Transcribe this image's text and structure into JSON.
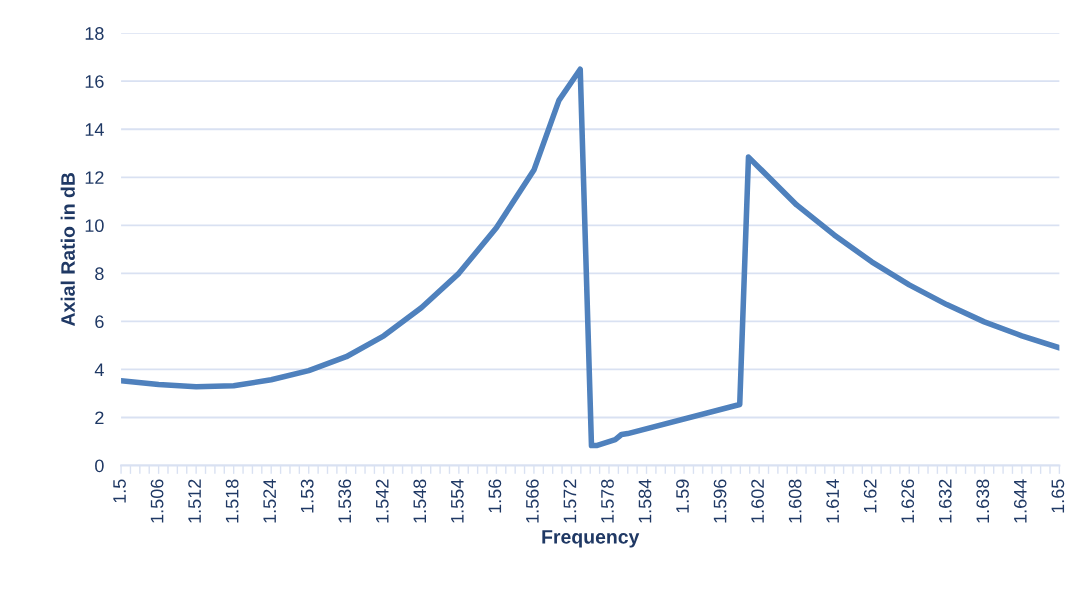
{
  "chart_data": {
    "type": "line",
    "xlabel": "Frequency",
    "ylabel": "Axial Ratio in dB",
    "x": [
      1.5,
      1.506,
      1.512,
      1.518,
      1.524,
      1.53,
      1.536,
      1.542,
      1.548,
      1.554,
      1.56,
      1.566,
      1.57,
      1.5734,
      1.5752,
      1.576,
      1.579,
      1.58,
      1.581,
      1.5989,
      1.6003,
      1.602,
      1.608,
      1.614,
      1.62,
      1.626,
      1.632,
      1.638,
      1.644,
      1.65
    ],
    "series": [
      {
        "color": "#4f81bd",
        "values": [
          3.53,
          3.37,
          3.28,
          3.32,
          3.57,
          3.95,
          4.53,
          5.4,
          6.57,
          8.0,
          9.9,
          12.3,
          15.2,
          16.5,
          0.83,
          0.83,
          1.08,
          1.29,
          1.33,
          2.54,
          12.84,
          12.4,
          10.85,
          9.6,
          8.48,
          7.52,
          6.7,
          5.98,
          5.4,
          4.9
        ]
      }
    ],
    "xlim": [
      1.5,
      1.65
    ],
    "xticks": [
      1.5,
      {
        "value": 1.5015,
        "label": null
      },
      {
        "value": 1.503,
        "label": null
      },
      {
        "value": 1.5045,
        "label": null
      },
      1.506,
      {
        "value": 1.5075,
        "label": null
      },
      {
        "value": 1.509,
        "label": null
      },
      {
        "value": 1.5105,
        "label": null
      },
      1.512,
      {
        "value": 1.5135,
        "label": null
      },
      {
        "value": 1.515,
        "label": null
      },
      {
        "value": 1.5165,
        "label": null
      },
      1.518,
      {
        "value": 1.5195,
        "label": null
      },
      {
        "value": 1.521,
        "label": null
      },
      {
        "value": 1.5225,
        "label": null
      },
      1.524,
      {
        "value": 1.5255,
        "label": null
      },
      {
        "value": 1.527,
        "label": null
      },
      {
        "value": 1.5285,
        "label": null
      },
      1.53,
      {
        "value": 1.5315,
        "label": null
      },
      {
        "value": 1.533,
        "label": null
      },
      {
        "value": 1.5345,
        "label": null
      },
      1.536,
      {
        "value": 1.5375,
        "label": null
      },
      {
        "value": 1.539,
        "label": null
      },
      {
        "value": 1.5405,
        "label": null
      },
      1.542,
      {
        "value": 1.5435,
        "label": null
      },
      {
        "value": 1.545,
        "label": null
      },
      {
        "value": 1.5465,
        "label": null
      },
      1.548,
      {
        "value": 1.5495,
        "label": null
      },
      {
        "value": 1.551,
        "label": null
      },
      {
        "value": 1.5525,
        "label": null
      },
      1.554,
      {
        "value": 1.5555,
        "label": null
      },
      {
        "value": 1.557,
        "label": null
      },
      {
        "value": 1.5585,
        "label": null
      },
      1.56,
      {
        "value": 1.5615,
        "label": null
      },
      {
        "value": 1.563,
        "label": null
      },
      {
        "value": 1.5645,
        "label": null
      },
      1.566,
      {
        "value": 1.5675,
        "label": null
      },
      {
        "value": 1.569,
        "label": null
      },
      {
        "value": 1.5705,
        "label": null
      },
      1.572,
      {
        "value": 1.5735,
        "label": null
      },
      {
        "value": 1.575,
        "label": null
      },
      {
        "value": 1.5765,
        "label": null
      },
      1.578,
      {
        "value": 1.5795,
        "label": null
      },
      {
        "value": 1.581,
        "label": null
      },
      {
        "value": 1.5825,
        "label": null
      },
      1.584,
      {
        "value": 1.5855,
        "label": null
      },
      {
        "value": 1.587,
        "label": null
      },
      {
        "value": 1.5885,
        "label": null
      },
      1.59,
      {
        "value": 1.5915,
        "label": null
      },
      {
        "value": 1.593,
        "label": null
      },
      {
        "value": 1.5945,
        "label": null
      },
      1.596,
      {
        "value": 1.5975,
        "label": null
      },
      {
        "value": 1.599,
        "label": null
      },
      {
        "value": 1.6005,
        "label": null
      },
      1.602,
      {
        "value": 1.6035,
        "label": null
      },
      {
        "value": 1.605,
        "label": null
      },
      {
        "value": 1.6065,
        "label": null
      },
      1.608,
      {
        "value": 1.6095,
        "label": null
      },
      {
        "value": 1.611,
        "label": null
      },
      {
        "value": 1.6125,
        "label": null
      },
      1.614,
      {
        "value": 1.6155,
        "label": null
      },
      {
        "value": 1.617,
        "label": null
      },
      {
        "value": 1.6185,
        "label": null
      },
      1.62,
      {
        "value": 1.6215,
        "label": null
      },
      {
        "value": 1.623,
        "label": null
      },
      {
        "value": 1.6245,
        "label": null
      },
      1.626,
      {
        "value": 1.6275,
        "label": null
      },
      {
        "value": 1.629,
        "label": null
      },
      {
        "value": 1.6305,
        "label": null
      },
      1.632,
      {
        "value": 1.6335,
        "label": null
      },
      {
        "value": 1.635,
        "label": null
      },
      {
        "value": 1.6365,
        "label": null
      },
      1.638,
      {
        "value": 1.6395,
        "label": null
      },
      {
        "value": 1.641,
        "label": null
      },
      {
        "value": 1.6425,
        "label": null
      },
      1.644,
      {
        "value": 1.6455,
        "label": null
      },
      {
        "value": 1.647,
        "label": null
      },
      {
        "value": 1.6485,
        "label": null
      },
      1.65
    ],
    "ylim": [
      0,
      18
    ],
    "yticks": [
      0,
      2,
      4,
      6,
      8,
      10,
      12,
      14,
      16,
      18
    ],
    "grid": "y",
    "legend": false,
    "marker": "none",
    "line_style": "solid"
  }
}
